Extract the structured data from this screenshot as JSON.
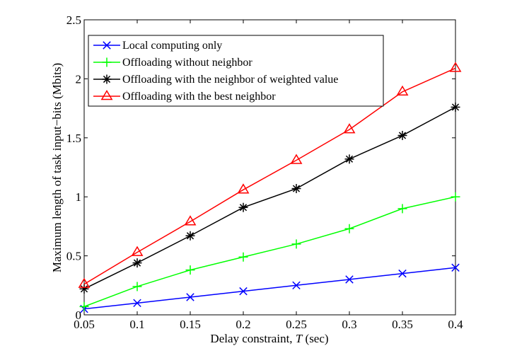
{
  "chart_data": {
    "type": "line",
    "title": "",
    "xlabel": "Delay constraint, ",
    "xlabel_var": "T",
    "xlabel_unit": " (sec)",
    "ylabel": "Maximum length of task input−bits (Mbits)",
    "xlim": [
      0.05,
      0.4
    ],
    "ylim": [
      0,
      2.5
    ],
    "x": [
      0.05,
      0.1,
      0.15,
      0.2,
      0.25,
      0.3,
      0.35,
      0.4
    ],
    "xticks": [
      "0.05",
      "0.1",
      "0.15",
      "0.2",
      "0.25",
      "0.3",
      "0.35",
      "0.4"
    ],
    "yticks": [
      "0",
      "0.5",
      "1",
      "1.5",
      "2",
      "2.5"
    ],
    "yticks_values": [
      0,
      0.5,
      1,
      1.5,
      2,
      2.5
    ],
    "grid": false,
    "legend_position": "top-left",
    "series": [
      {
        "name": "Local computing only",
        "color": "#0000ff",
        "marker": "x",
        "values": [
          0.05,
          0.1,
          0.15,
          0.2,
          0.25,
          0.3,
          0.35,
          0.4
        ]
      },
      {
        "name": "Offloading without neighbor",
        "color": "#00ff00",
        "marker": "plus",
        "values": [
          0.07,
          0.24,
          0.38,
          0.49,
          0.6,
          0.73,
          0.9,
          1.0
        ]
      },
      {
        "name": "Offloading with the neighbor of weighted value",
        "color": "#000000",
        "marker": "star",
        "values": [
          0.22,
          0.44,
          0.67,
          0.91,
          1.07,
          1.32,
          1.52,
          1.76
        ]
      },
      {
        "name": "Offloading with the best neighbor",
        "color": "#ff0000",
        "marker": "triangle",
        "values": [
          0.26,
          0.53,
          0.79,
          1.06,
          1.31,
          1.57,
          1.89,
          2.09
        ]
      }
    ]
  }
}
